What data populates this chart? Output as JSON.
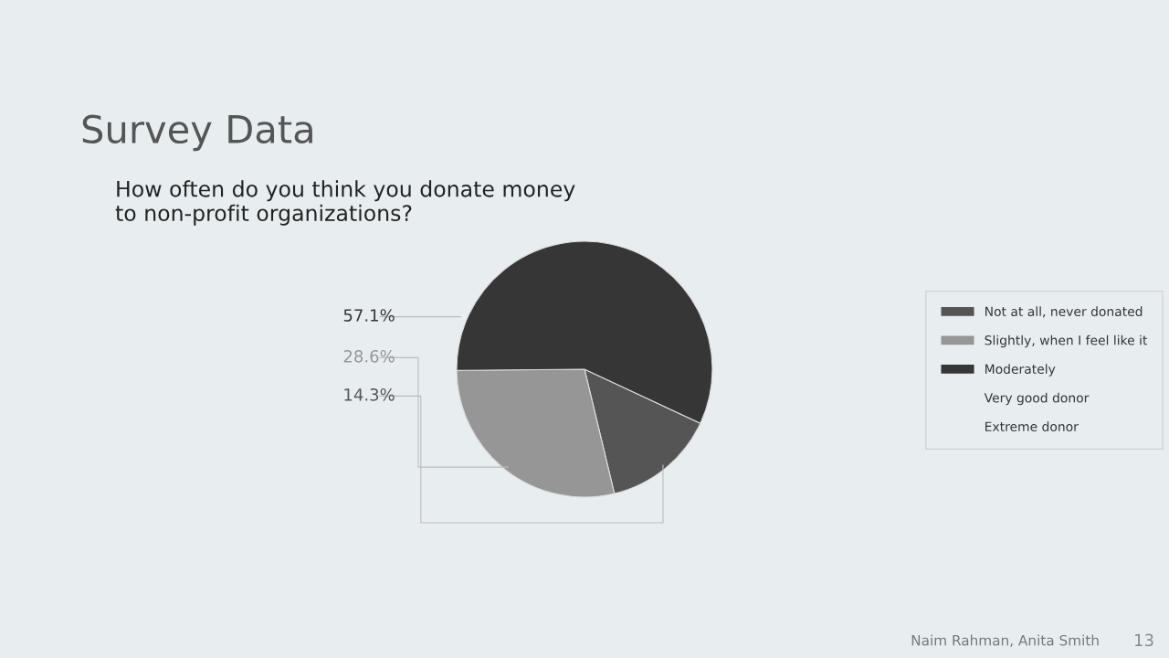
{
  "chart_data": {
    "type": "pie",
    "title": "Survey Data",
    "subtitle": "How often do you think you donate money to non-profit organizations?",
    "categories": [
      "Not at all, never donated",
      "Slightly, when I feel like it",
      "Moderately",
      "Very good donor",
      "Extreme donor"
    ],
    "values": [
      14.3,
      28.6,
      57.1,
      0,
      0
    ],
    "colors": [
      "#555555",
      "#969696",
      "#363636",
      null,
      null
    ],
    "value_labels": [
      "14.3%",
      "28.6%",
      "57.1%",
      null,
      null
    ],
    "legend": "right",
    "annotations": [
      "Naim Rahman, Anita Smith",
      "13"
    ]
  }
}
